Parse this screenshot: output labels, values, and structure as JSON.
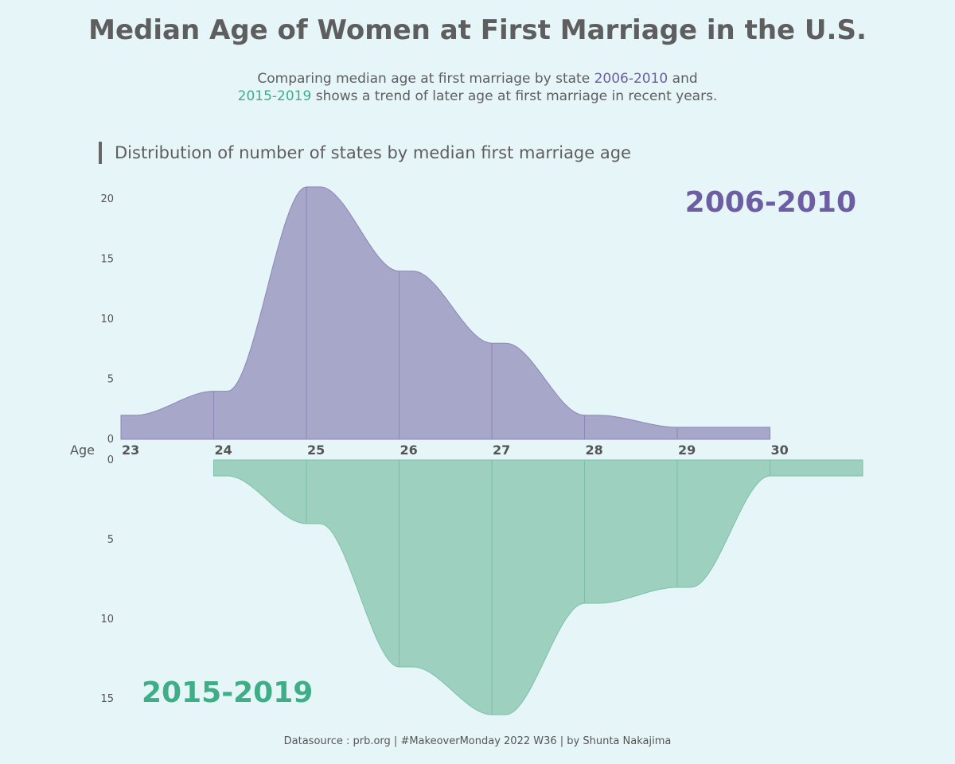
{
  "title": "Median Age of Women at First Marriage in the U.S.",
  "subtitle": {
    "part1": "Comparing median age at first marriage by state ",
    "period1": "2006-2010",
    "part2": " and",
    "period2": "2015-2019",
    "part3": " shows a trend of later age at first marriage in recent years."
  },
  "section_title": "Distribution of number of states by median first marriage age",
  "footer": "Datasource : prb.org  | #MakeoverMonday 2022 W36 | by Shunta Nakajima",
  "colors": {
    "period1_fill": "#a7a7ca",
    "period1_line": "#8d86b8",
    "period1_text": "#6d5ea3",
    "period2_fill": "#9ed0c0",
    "period2_line": "#7cc0a8",
    "period2_text": "#3fae86",
    "background": "#e6f5f8"
  },
  "chart_data": {
    "type": "area",
    "title": "Distribution of number of states by median first marriage age",
    "xlabel": "Age",
    "x_ticks": [
      "23",
      "24",
      "25",
      "26",
      "27",
      "28",
      "29",
      "30"
    ],
    "xlim": [
      23,
      30
    ],
    "series": [
      {
        "name": "2006-2010",
        "label": "2006-2010",
        "direction": "up",
        "x": [
          23,
          24,
          25,
          26,
          27,
          28,
          29
        ],
        "values": [
          2,
          4,
          21,
          14,
          8,
          2,
          1
        ],
        "ylim": [
          0,
          21
        ],
        "y_ticks": [
          "0",
          "5",
          "10",
          "15",
          "20"
        ]
      },
      {
        "name": "2015-2019",
        "label": "2015-2019",
        "direction": "down",
        "x": [
          24,
          25,
          26,
          27,
          28,
          29,
          30
        ],
        "values": [
          1,
          4,
          13,
          16,
          9,
          8,
          1
        ],
        "ylim": [
          0,
          16
        ],
        "y_ticks": [
          "0",
          "5",
          "10",
          "15"
        ]
      }
    ]
  }
}
